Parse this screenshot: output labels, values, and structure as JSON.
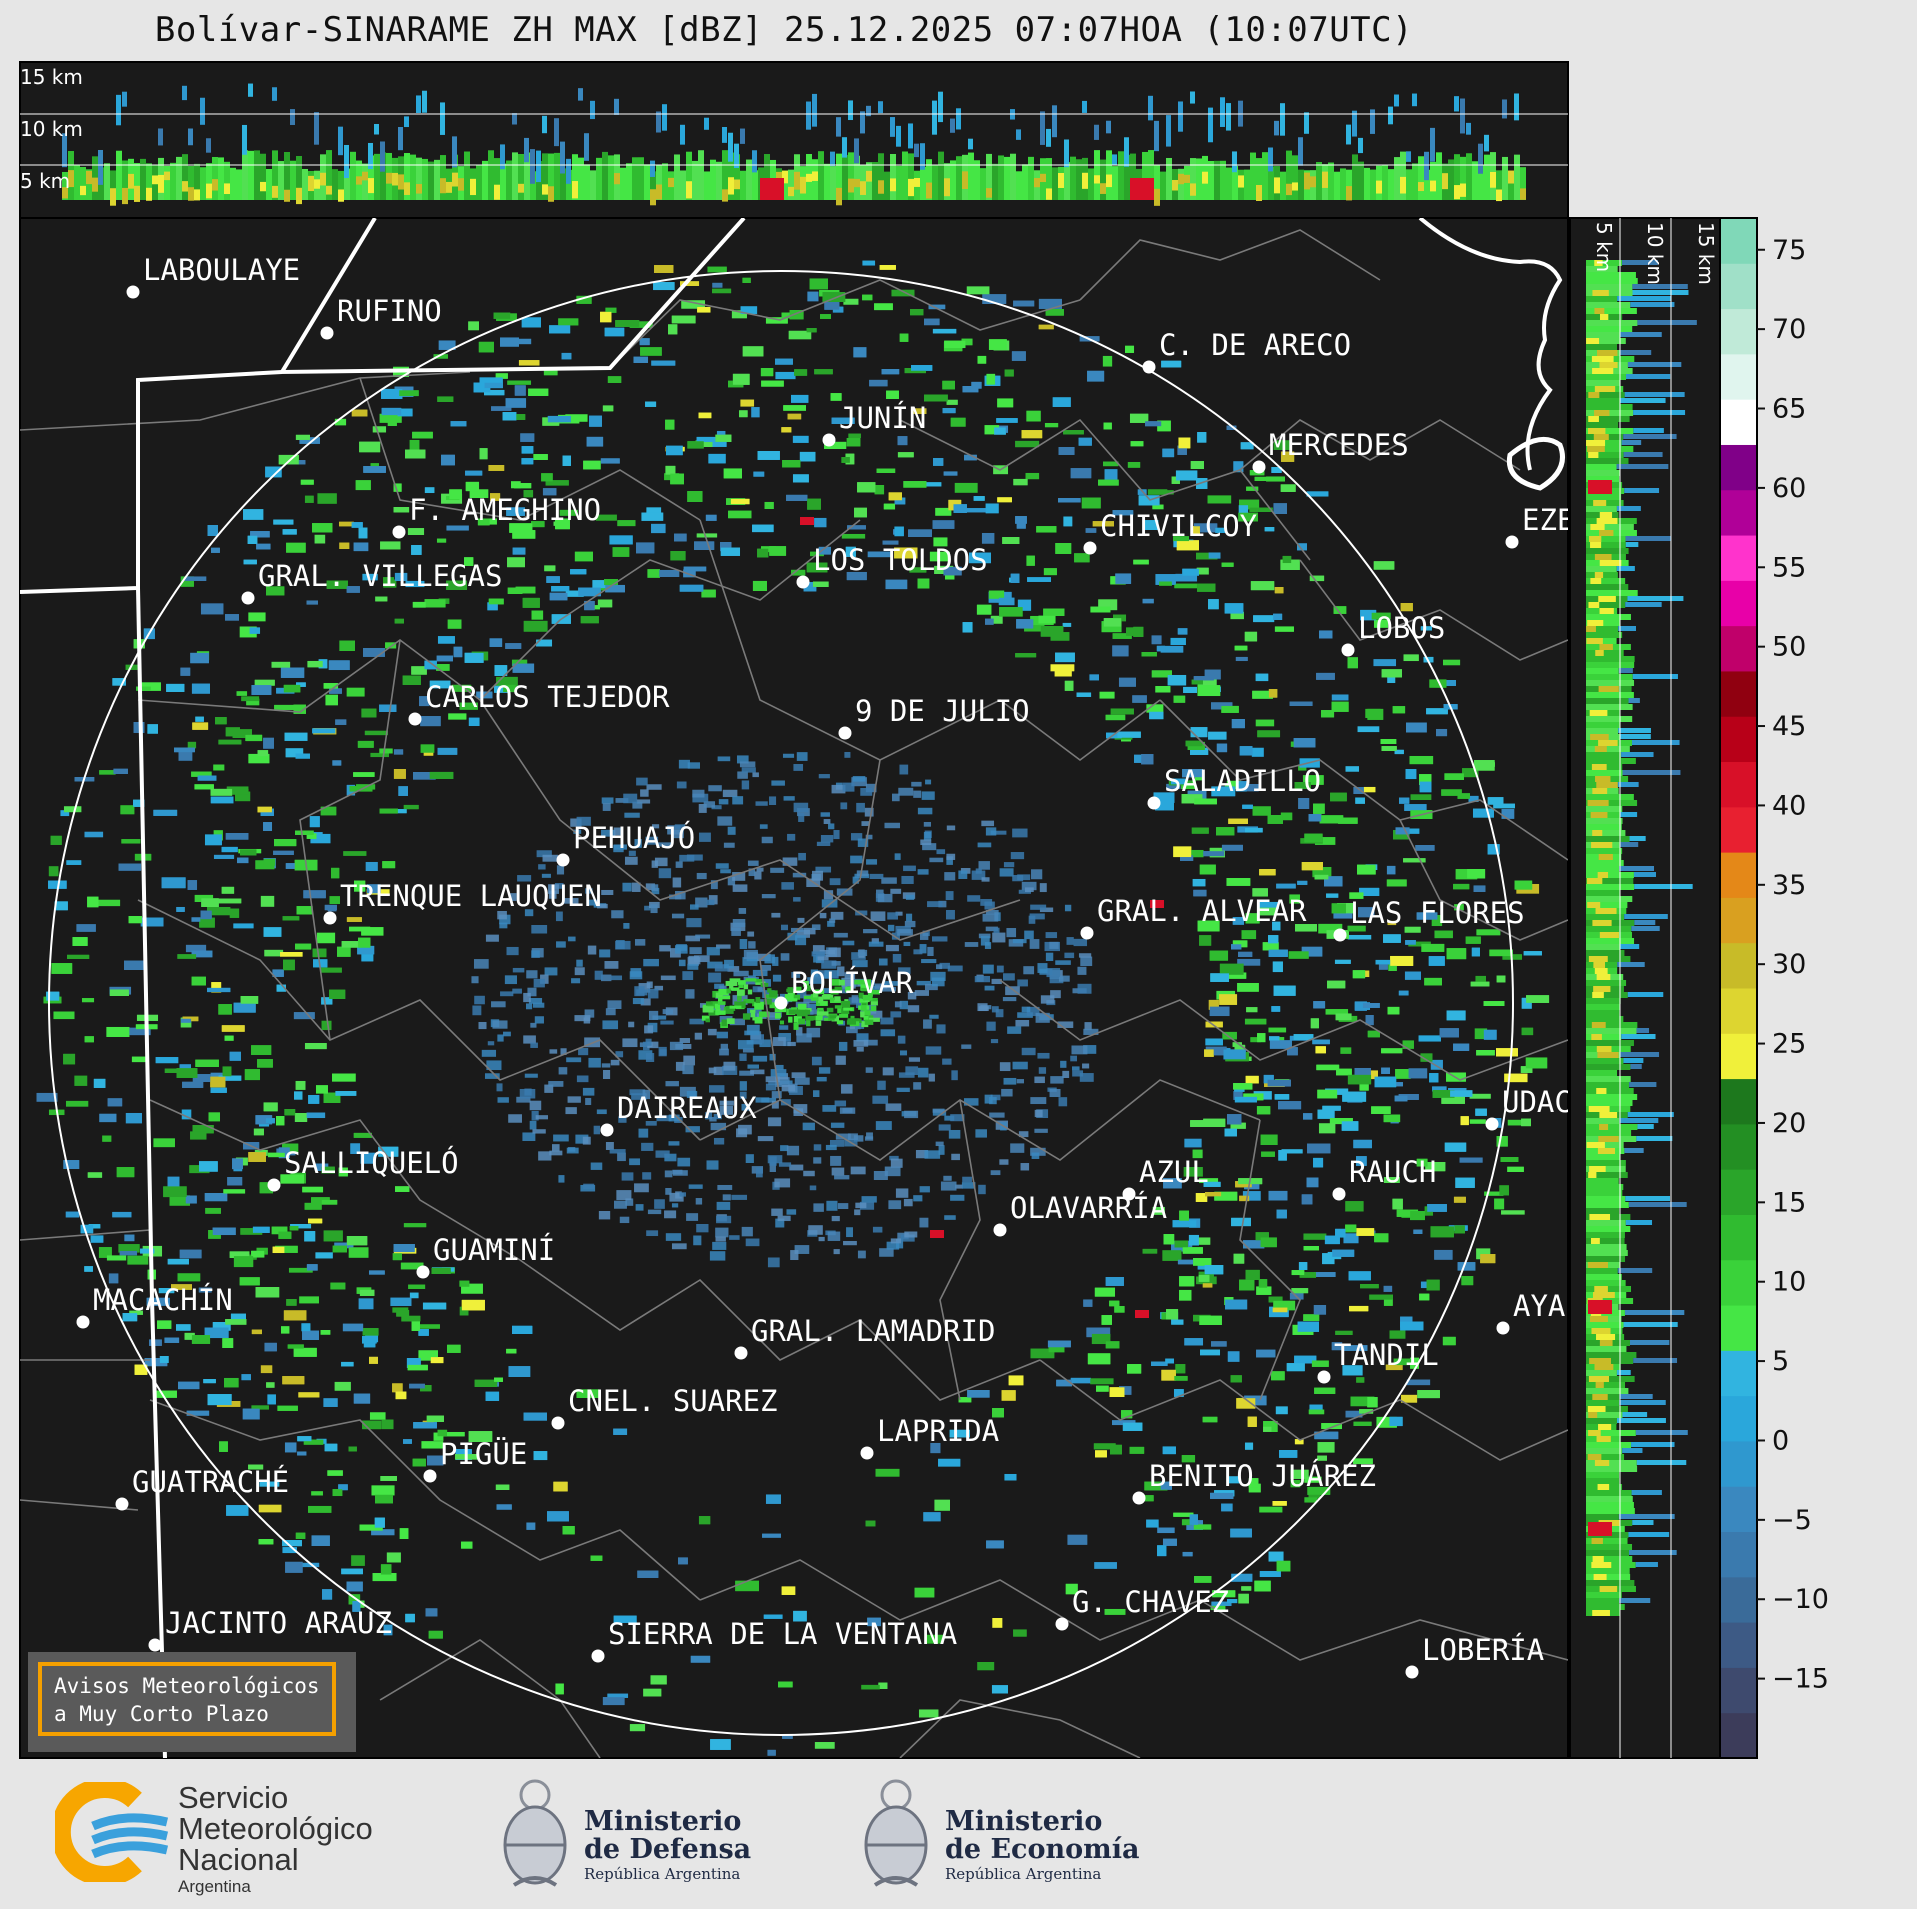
{
  "title": "Bolívar-SINARAME ZH MAX [dBZ] 25.12.2025 07:07HOA (10:07UTC)",
  "top_panel": {
    "labels": [
      "15 km",
      "10 km",
      "5 km"
    ]
  },
  "side_panel": {
    "labels": [
      "5 km",
      "10 km",
      "15 km"
    ]
  },
  "colorbar": {
    "unit": "dBZ",
    "ticks": [
      "75",
      "70",
      "65",
      "60",
      "55",
      "50",
      "45",
      "40",
      "35",
      "30",
      "25",
      "20",
      "15",
      "10",
      "5",
      "0",
      "−5",
      "−10",
      "−15"
    ],
    "colors": [
      "#3c3c5a",
      "#3e4a6e",
      "#3d5a85",
      "#3a6b99",
      "#3a7aae",
      "#3a88bf",
      "#2f98cf",
      "#2aa7db",
      "#31b4e0",
      "#45e645",
      "#3ad23a",
      "#30bb30",
      "#2aa52a",
      "#238f23",
      "#1d781d",
      "#f0f03a",
      "#ddd530",
      "#c8bb28",
      "#d9a020",
      "#e48818",
      "#e82030",
      "#d81028",
      "#b80018",
      "#900010",
      "#c0006a",
      "#e800a8",
      "#ff33cc",
      "#b00098",
      "#800088",
      "#ffffff",
      "#e0f5ee",
      "#c0ead8",
      "#a0e0c8",
      "#80d8b8"
    ],
    "range": [
      -20,
      77
    ]
  },
  "cities": [
    {
      "name": "LABOULAYE"
    },
    {
      "name": "RUFINO"
    },
    {
      "name": "C. DE ARECO"
    },
    {
      "name": "JUNÍN"
    },
    {
      "name": "MERCEDES"
    },
    {
      "name": "F. AMEGHINO"
    },
    {
      "name": "CHIVILCOY"
    },
    {
      "name": "EZE"
    },
    {
      "name": "GRAL. VILLEGAS"
    },
    {
      "name": "LOS TOLDOS"
    },
    {
      "name": "LOBOS"
    },
    {
      "name": "CARLOS TEJEDOR"
    },
    {
      "name": "9 DE JULIO"
    },
    {
      "name": "SALADILLO"
    },
    {
      "name": "PEHUAJÓ"
    },
    {
      "name": "TRENQUE LAUQUEN"
    },
    {
      "name": "GRAL. ALVEAR"
    },
    {
      "name": "LAS FLORES"
    },
    {
      "name": "BOLÍVAR"
    },
    {
      "name": "DAIREAUX"
    },
    {
      "name": "UDAC"
    },
    {
      "name": "SALLIQUELÓ"
    },
    {
      "name": "AZUL"
    },
    {
      "name": "RAUCH"
    },
    {
      "name": "OLAVARRÍA"
    },
    {
      "name": "GUAMINÍ"
    },
    {
      "name": "MACACHÍN"
    },
    {
      "name": "AYA"
    },
    {
      "name": "GRAL. LAMADRID"
    },
    {
      "name": "TANDIL"
    },
    {
      "name": "CNEL. SUAREZ"
    },
    {
      "name": "LAPRIDA"
    },
    {
      "name": "PIGÜE"
    },
    {
      "name": "GUATRACHÉ"
    },
    {
      "name": "BENITO JUÁREZ"
    },
    {
      "name": "G. CHAVEZ"
    },
    {
      "name": "JACINTO ARAUZ"
    },
    {
      "name": "SIERRA DE LA VENTANA"
    },
    {
      "name": "LOBERÍA"
    }
  ],
  "avisos": {
    "line1": "Avisos Meteorológicos",
    "line2": "a Muy Corto Plazo"
  },
  "logos": {
    "smn": {
      "l1": "Servicio",
      "l2": "Meteorológico",
      "l3": "Nacional",
      "sub": "Argentina"
    },
    "defensa": {
      "l1": "Ministerio",
      "l2": "de Defensa",
      "sub": "República Argentina"
    },
    "economia": {
      "l1": "Ministerio",
      "l2": "de Economía",
      "sub": "República Argentina"
    }
  }
}
